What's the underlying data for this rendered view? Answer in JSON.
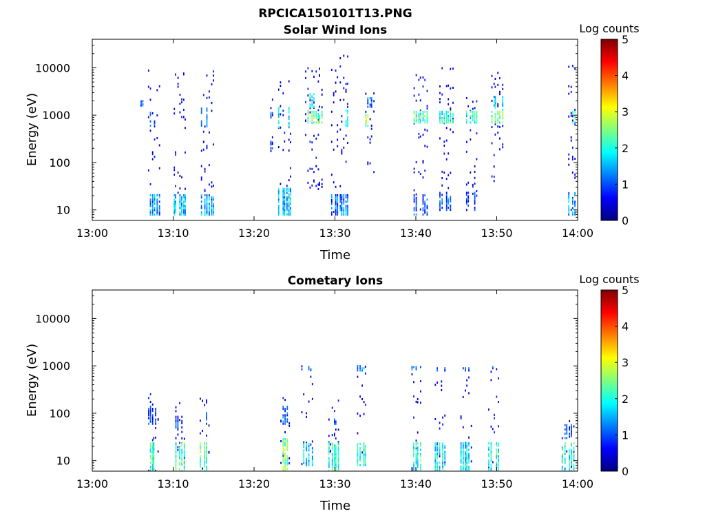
{
  "figure_title": "RPCICA150101T13.PNG",
  "colors": {
    "colormap": [
      "#00007f",
      "#0000ff",
      "#007fff",
      "#00ffff",
      "#7fff7f",
      "#ffff00",
      "#ff7f00",
      "#ff0000",
      "#7f0000"
    ],
    "axis": "#000000",
    "background": "#ffffff"
  },
  "chart_data": [
    {
      "type": "heatmap",
      "title": "Solar Wind Ions",
      "xlabel": "Time",
      "ylabel": "Energy (eV)",
      "x_ticks": [
        "13:00",
        "13:10",
        "13:20",
        "13:30",
        "13:40",
        "13:50",
        "14:00"
      ],
      "x_range_minutes": [
        0,
        60
      ],
      "y_scale": "log",
      "y_range": [
        6,
        40000
      ],
      "y_ticks": [
        {
          "value": 10,
          "label": "10"
        },
        {
          "value": 100,
          "label": "100"
        },
        {
          "value": 1000,
          "label": "1000"
        },
        {
          "value": 10000,
          "label": "10000"
        }
      ],
      "colorbar": {
        "label": "Log counts",
        "range": [
          0,
          5
        ],
        "ticks": [
          "0",
          "1",
          "2",
          "3",
          "4",
          "5"
        ]
      },
      "clusters": [
        {
          "t": 7.6,
          "w": 1.6,
          "elo": 8,
          "ehi": 9000,
          "n": 26,
          "band": [
            8,
            22
          ],
          "band_val": 1.3,
          "mid": [
            600,
            1200
          ],
          "mid_val": 1.0
        },
        {
          "t": 10.8,
          "w": 1.7,
          "elo": 10,
          "ehi": 8500,
          "n": 32,
          "band": [
            8,
            22
          ],
          "band_val": 1.6,
          "mid": [
            600,
            1400
          ],
          "mid_val": 1.2
        },
        {
          "t": 14.2,
          "w": 1.7,
          "elo": 10,
          "ehi": 9000,
          "n": 36,
          "band": [
            8,
            22
          ],
          "band_val": 1.4,
          "mid": [
            600,
            1400
          ],
          "mid_val": 1.1
        },
        {
          "t": 23.8,
          "w": 1.8,
          "elo": 8,
          "ehi": 6000,
          "n": 44,
          "band": [
            8,
            30
          ],
          "band_val": 1.6,
          "mid": [
            500,
            1500
          ],
          "mid_val": 1.8
        },
        {
          "t": 27.4,
          "w": 2.2,
          "elo": 20,
          "ehi": 12000,
          "n": 60,
          "band": [
            700,
            1300
          ],
          "band_val": 2.4,
          "mid": [
            1500,
            3000
          ],
          "mid_val": 1.8
        },
        {
          "t": 30.6,
          "w": 2.2,
          "elo": 7,
          "ehi": 18000,
          "n": 56,
          "band": [
            8,
            22
          ],
          "band_val": 1.2,
          "mid": [
            600,
            1400
          ],
          "mid_val": 2.0
        },
        {
          "t": 34.3,
          "w": 1.2,
          "elo": 60,
          "ehi": 3000,
          "n": 18,
          "band": [
            600,
            1100
          ],
          "band_val": 2.6,
          "mid": [
            1500,
            2500
          ],
          "mid_val": 1.2
        },
        {
          "t": 40.6,
          "w": 1.8,
          "elo": 8,
          "ehi": 9000,
          "n": 40,
          "band": [
            700,
            1200
          ],
          "band_val": 2.2,
          "mid": [
            8,
            22
          ],
          "mid_val": 1.0
        },
        {
          "t": 43.8,
          "w": 1.8,
          "elo": 10,
          "ehi": 10000,
          "n": 40,
          "band": [
            700,
            1200
          ],
          "band_val": 2.0,
          "mid": [
            10,
            25
          ],
          "mid_val": 1.0
        },
        {
          "t": 46.9,
          "w": 1.6,
          "elo": 10,
          "ehi": 2500,
          "n": 30,
          "band": [
            700,
            1200
          ],
          "band_val": 2.0,
          "mid": [
            10,
            25
          ],
          "mid_val": 0.8
        },
        {
          "t": 50.0,
          "w": 1.6,
          "elo": 40,
          "ehi": 8000,
          "n": 38,
          "band": [
            700,
            1300
          ],
          "band_val": 2.3,
          "mid": [
            1300,
            2500
          ],
          "mid_val": 1.6
        },
        {
          "t": 59.3,
          "w": 1.0,
          "elo": 8,
          "ehi": 13000,
          "n": 30,
          "band": [
            8,
            25
          ],
          "band_val": 1.4,
          "mid": [
            700,
            1200
          ],
          "mid_val": 2.0
        },
        {
          "t": 6.1,
          "w": 0.4,
          "elo": 1500,
          "ehi": 2100,
          "n": 2,
          "band": [
            1600,
            2000
          ],
          "band_val": 1.2,
          "mid": [
            1600,
            2000
          ],
          "mid_val": 1.0
        },
        {
          "t": 22.2,
          "w": 0.6,
          "elo": 150,
          "ehi": 3000,
          "n": 6,
          "band": [
            900,
            1200
          ],
          "band_val": 1.0,
          "mid": [
            200,
            300
          ],
          "mid_val": 0.8
        }
      ]
    },
    {
      "type": "heatmap",
      "title": "Cometary Ions",
      "xlabel": "Time",
      "ylabel": "Energy (eV)",
      "x_ticks": [
        "13:00",
        "13:10",
        "13:20",
        "13:30",
        "13:40",
        "13:50",
        "14:00"
      ],
      "x_range_minutes": [
        0,
        60
      ],
      "y_scale": "log",
      "y_range": [
        6,
        40000
      ],
      "y_ticks": [
        {
          "value": 10,
          "label": "10"
        },
        {
          "value": 100,
          "label": "100"
        },
        {
          "value": 1000,
          "label": "1000"
        },
        {
          "value": 10000,
          "label": "10000"
        }
      ],
      "colorbar": {
        "label": "Log counts",
        "range": [
          0,
          5
        ],
        "ticks": [
          "0",
          "1",
          "2",
          "3",
          "4",
          "5"
        ]
      },
      "clusters": [
        {
          "t": 7.5,
          "w": 1.4,
          "elo": 6,
          "ehi": 300,
          "n": 18,
          "band": [
            6,
            25
          ],
          "band_val": 2.1,
          "mid": [
            60,
            140
          ],
          "mid_val": 0.8
        },
        {
          "t": 10.8,
          "w": 1.3,
          "elo": 6,
          "ehi": 180,
          "n": 18,
          "band": [
            6,
            25
          ],
          "band_val": 2.2,
          "mid": [
            50,
            90
          ],
          "mid_val": 0.8
        },
        {
          "t": 13.9,
          "w": 1.3,
          "elo": 6,
          "ehi": 220,
          "n": 16,
          "band": [
            6,
            25
          ],
          "band_val": 2.3,
          "mid": [
            60,
            200
          ],
          "mid_val": 0.8
        },
        {
          "t": 23.8,
          "w": 1.2,
          "elo": 6,
          "ehi": 330,
          "n": 18,
          "band": [
            6,
            30
          ],
          "band_val": 2.5,
          "mid": [
            60,
            140
          ],
          "mid_val": 1.0
        },
        {
          "t": 26.6,
          "w": 1.6,
          "elo": 6,
          "ehi": 1000,
          "n": 16,
          "band": [
            8,
            25
          ],
          "band_val": 1.6,
          "mid": [
            850,
            1000
          ],
          "mid_val": 1.3
        },
        {
          "t": 29.8,
          "w": 1.4,
          "elo": 6,
          "ehi": 200,
          "n": 16,
          "band": [
            6,
            25
          ],
          "band_val": 2.0,
          "mid": [
            60,
            80
          ],
          "mid_val": 0.8
        },
        {
          "t": 33.3,
          "w": 1.2,
          "elo": 8,
          "ehi": 1000,
          "n": 14,
          "band": [
            8,
            25
          ],
          "band_val": 2.1,
          "mid": [
            800,
            1000
          ],
          "mid_val": 1.4
        },
        {
          "t": 40.0,
          "w": 1.3,
          "elo": 6,
          "ehi": 1000,
          "n": 16,
          "band": [
            6,
            25
          ],
          "band_val": 2.0,
          "mid": [
            850,
            1000
          ],
          "mid_val": 1.2
        },
        {
          "t": 43.0,
          "w": 1.4,
          "elo": 6,
          "ehi": 900,
          "n": 16,
          "band": [
            6,
            25
          ],
          "band_val": 1.8,
          "mid": [
            800,
            900
          ],
          "mid_val": 1.0
        },
        {
          "t": 46.2,
          "w": 1.6,
          "elo": 6,
          "ehi": 950,
          "n": 16,
          "band": [
            6,
            25
          ],
          "band_val": 1.8,
          "mid": [
            800,
            950
          ],
          "mid_val": 1.0
        },
        {
          "t": 49.6,
          "w": 1.4,
          "elo": 6,
          "ehi": 900,
          "n": 16,
          "band": [
            6,
            25
          ],
          "band_val": 2.0,
          "mid": [
            850,
            950
          ],
          "mid_val": 1.2
        },
        {
          "t": 58.8,
          "w": 1.6,
          "elo": 6,
          "ehi": 80,
          "n": 16,
          "band": [
            6,
            25
          ],
          "band_val": 2.0,
          "mid": [
            30,
            60
          ],
          "mid_val": 1.0
        }
      ]
    }
  ]
}
